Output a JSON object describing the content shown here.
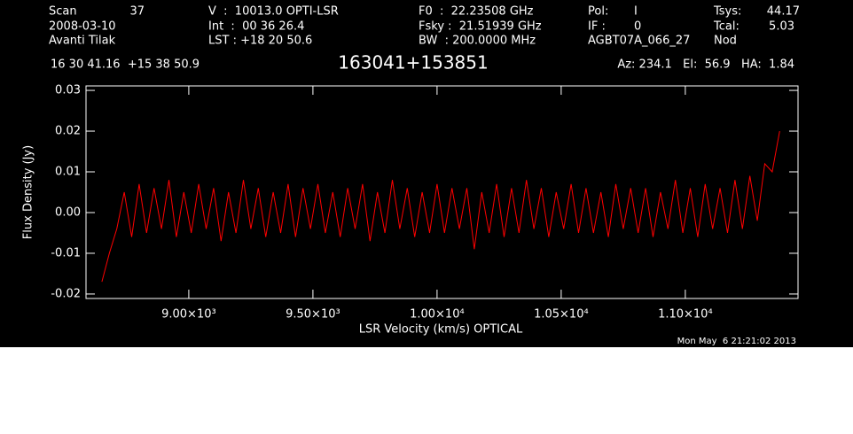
{
  "header": {
    "scan_label": "Scan",
    "scan": "37",
    "date": "2008-03-10",
    "observer": "Avanti Tilak",
    "velocity": "V  :  10013.0 OPTI-LSR",
    "int": "Int  :  00 36 26.4",
    "lst": "LST : +18 20 50.6",
    "f0": "F0  :  22.23508 GHz",
    "fsky": "Fsky :  21.51939 GHz",
    "bw": "BW  : 200.0000 MHz",
    "pol_label": "Pol:",
    "pol": "I",
    "if_label": "IF :",
    "if": "0",
    "project": "AGBT07A_066_27",
    "tsys_label": "Tsys:",
    "tsys": "44.17",
    "tcal_label": "Tcal:",
    "tcal": "5.03",
    "proc": "Nod",
    "coords": "16 30 41.16  +15 38 50.9",
    "azel": "Az: 234.1   El:  56.9   HA:  1.84",
    "timestamp": "Mon May  6 21:21:02 2013"
  },
  "chart_data": {
    "type": "line",
    "title": "163041+153851",
    "xlabel": "LSR Velocity (km/s) OPTICAL",
    "ylabel": "Flux Density (Jy)",
    "xlim": [
      8586,
      11454
    ],
    "ylim": [
      -0.0211,
      0.0311
    ],
    "xticks": [
      {
        "value": 9000,
        "label": "9.00×10³"
      },
      {
        "value": 9500,
        "label": "9.50×10³"
      },
      {
        "value": 10000,
        "label": "1.00×10⁴"
      },
      {
        "value": 10500,
        "label": "1.05×10⁴"
      },
      {
        "value": 11000,
        "label": "1.10×10⁴"
      }
    ],
    "yticks": [
      -0.02,
      -0.01,
      {
        "value": 0,
        "label": "0.00"
      },
      0.01,
      0.02,
      0.03
    ],
    "x": [
      8650,
      8680,
      8710,
      8740,
      8770,
      8800,
      8830,
      8860,
      8890,
      8920,
      8950,
      8980,
      9010,
      9040,
      9070,
      9100,
      9130,
      9160,
      9190,
      9220,
      9250,
      9280,
      9310,
      9340,
      9370,
      9400,
      9430,
      9460,
      9490,
      9520,
      9550,
      9580,
      9610,
      9640,
      9670,
      9700,
      9730,
      9760,
      9790,
      9820,
      9850,
      9880,
      9910,
      9940,
      9970,
      10000,
      10030,
      10060,
      10090,
      10120,
      10150,
      10180,
      10210,
      10240,
      10270,
      10300,
      10330,
      10360,
      10390,
      10420,
      10450,
      10480,
      10510,
      10540,
      10570,
      10600,
      10630,
      10660,
      10690,
      10720,
      10750,
      10780,
      10810,
      10840,
      10870,
      10900,
      10930,
      10960,
      10990,
      11020,
      11050,
      11080,
      11110,
      11140,
      11170,
      11200,
      11230,
      11260,
      11290,
      11320,
      11350,
      11380
    ],
    "series": [
      {
        "color": "#ff0000",
        "values": [
          -0.017,
          -0.01,
          -0.004,
          0.005,
          -0.006,
          0.007,
          -0.005,
          0.006,
          -0.004,
          0.008,
          -0.006,
          0.005,
          -0.005,
          0.007,
          -0.004,
          0.006,
          -0.007,
          0.005,
          -0.005,
          0.008,
          -0.004,
          0.006,
          -0.006,
          0.005,
          -0.005,
          0.007,
          -0.006,
          0.006,
          -0.004,
          0.007,
          -0.005,
          0.005,
          -0.006,
          0.006,
          -0.004,
          0.007,
          -0.007,
          0.005,
          -0.005,
          0.008,
          -0.004,
          0.006,
          -0.006,
          0.005,
          -0.005,
          0.007,
          -0.005,
          0.006,
          -0.004,
          0.006,
          -0.009,
          0.005,
          -0.005,
          0.007,
          -0.006,
          0.006,
          -0.005,
          0.008,
          -0.004,
          0.006,
          -0.006,
          0.005,
          -0.004,
          0.007,
          -0.005,
          0.006,
          -0.005,
          0.005,
          -0.006,
          0.007,
          -0.004,
          0.006,
          -0.005,
          0.006,
          -0.006,
          0.005,
          -0.004,
          0.008,
          -0.005,
          0.006,
          -0.006,
          0.007,
          -0.004,
          0.006,
          -0.005,
          0.008,
          -0.004,
          0.009,
          -0.002,
          0.012,
          0.01,
          0.02
        ]
      }
    ]
  }
}
